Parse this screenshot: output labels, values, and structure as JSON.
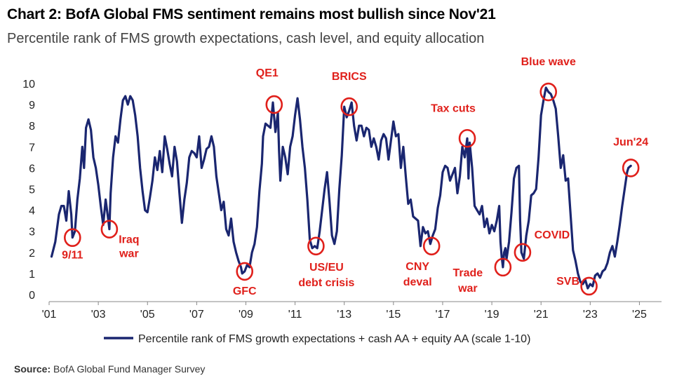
{
  "title": "Chart 2: BofA Global FMS sentiment remains most bullish since Nov'21",
  "subtitle": "Percentile rank of FMS growth expectations, cash level, and equity allocation",
  "source": {
    "label": "Source:",
    "text": "BofA Global Fund Manager Survey"
  },
  "colors": {
    "line": "#1a2670",
    "annotation": "#e0201b",
    "axis": "#888888"
  },
  "chart_data": {
    "type": "line",
    "title": "Chart 2: BofA Global FMS sentiment remains most bullish since Nov'21",
    "subtitle": "Percentile rank of FMS growth expectations, cash level, and equity allocation",
    "xlabel": "",
    "ylabel": "",
    "xlim": [
      2001,
      2025.9
    ],
    "ylim": [
      0,
      10
    ],
    "y_ticks": [
      0,
      1,
      2,
      3,
      4,
      5,
      6,
      7,
      8,
      9,
      10
    ],
    "x_ticks": [
      {
        "value": 2001,
        "label": "'01"
      },
      {
        "value": 2003,
        "label": "'03"
      },
      {
        "value": 2005,
        "label": "'05"
      },
      {
        "value": 2007,
        "label": "'07"
      },
      {
        "value": 2009,
        "label": "'09"
      },
      {
        "value": 2011,
        "label": "'11"
      },
      {
        "value": 2013,
        "label": "'13"
      },
      {
        "value": 2015,
        "label": "'15"
      },
      {
        "value": 2017,
        "label": "'17"
      },
      {
        "value": 2019,
        "label": "'19"
      },
      {
        "value": 2021,
        "label": "'21"
      },
      {
        "value": 2023,
        "label": "'23"
      },
      {
        "value": 2025,
        "label": "'25"
      }
    ],
    "grid": false,
    "legend": "bottom-center",
    "series": [
      {
        "name": "Percentile rank of FMS growth expectations + cash AA + equity AA (scale 1-10)",
        "points": [
          [
            2001.1,
            1.8
          ],
          [
            2001.25,
            2.5
          ],
          [
            2001.4,
            3.8
          ],
          [
            2001.5,
            4.2
          ],
          [
            2001.6,
            4.2
          ],
          [
            2001.7,
            3.5
          ],
          [
            2001.8,
            4.9
          ],
          [
            2001.9,
            3.8
          ],
          [
            2001.95,
            2.7
          ],
          [
            2002.05,
            3.0
          ],
          [
            2002.15,
            4.5
          ],
          [
            2002.25,
            5.5
          ],
          [
            2002.35,
            7.0
          ],
          [
            2002.42,
            6.0
          ],
          [
            2002.5,
            7.9
          ],
          [
            2002.6,
            8.3
          ],
          [
            2002.7,
            7.8
          ],
          [
            2002.8,
            6.5
          ],
          [
            2002.9,
            6.0
          ],
          [
            2003.0,
            5.2
          ],
          [
            2003.1,
            4.2
          ],
          [
            2003.2,
            3.3
          ],
          [
            2003.3,
            4.5
          ],
          [
            2003.4,
            3.6
          ],
          [
            2003.45,
            3.1
          ],
          [
            2003.5,
            4.8
          ],
          [
            2003.6,
            6.5
          ],
          [
            2003.7,
            7.5
          ],
          [
            2003.8,
            7.2
          ],
          [
            2003.9,
            8.3
          ],
          [
            2004.0,
            9.2
          ],
          [
            2004.1,
            9.4
          ],
          [
            2004.2,
            9.0
          ],
          [
            2004.3,
            9.4
          ],
          [
            2004.4,
            9.2
          ],
          [
            2004.5,
            8.5
          ],
          [
            2004.6,
            7.5
          ],
          [
            2004.7,
            6.0
          ],
          [
            2004.8,
            4.9
          ],
          [
            2004.9,
            4.0
          ],
          [
            2005.0,
            3.9
          ],
          [
            2005.1,
            4.6
          ],
          [
            2005.2,
            5.4
          ],
          [
            2005.3,
            6.5
          ],
          [
            2005.4,
            5.9
          ],
          [
            2005.5,
            6.8
          ],
          [
            2005.6,
            5.8
          ],
          [
            2005.7,
            7.5
          ],
          [
            2005.8,
            6.9
          ],
          [
            2005.9,
            6.2
          ],
          [
            2006.0,
            5.6
          ],
          [
            2006.1,
            7.0
          ],
          [
            2006.2,
            6.3
          ],
          [
            2006.3,
            4.8
          ],
          [
            2006.4,
            3.4
          ],
          [
            2006.5,
            4.5
          ],
          [
            2006.6,
            5.3
          ],
          [
            2006.7,
            6.5
          ],
          [
            2006.8,
            6.8
          ],
          [
            2006.9,
            6.7
          ],
          [
            2007.0,
            6.5
          ],
          [
            2007.1,
            7.5
          ],
          [
            2007.2,
            6.0
          ],
          [
            2007.3,
            6.4
          ],
          [
            2007.4,
            6.9
          ],
          [
            2007.5,
            7.0
          ],
          [
            2007.6,
            7.5
          ],
          [
            2007.7,
            7.0
          ],
          [
            2007.8,
            5.6
          ],
          [
            2007.9,
            4.8
          ],
          [
            2008.0,
            4.0
          ],
          [
            2008.1,
            4.4
          ],
          [
            2008.2,
            3.1
          ],
          [
            2008.3,
            2.8
          ],
          [
            2008.4,
            3.6
          ],
          [
            2008.5,
            2.5
          ],
          [
            2008.6,
            2.0
          ],
          [
            2008.7,
            1.6
          ],
          [
            2008.8,
            1.3
          ],
          [
            2008.85,
            1.0
          ],
          [
            2008.95,
            1.1
          ],
          [
            2009.05,
            1.4
          ],
          [
            2009.15,
            1.3
          ],
          [
            2009.25,
            2.0
          ],
          [
            2009.35,
            2.4
          ],
          [
            2009.45,
            3.2
          ],
          [
            2009.55,
            4.9
          ],
          [
            2009.65,
            6.2
          ],
          [
            2009.7,
            7.5
          ],
          [
            2009.8,
            8.1
          ],
          [
            2009.9,
            8.0
          ],
          [
            2010.0,
            7.9
          ],
          [
            2010.1,
            9.1
          ],
          [
            2010.2,
            7.7
          ],
          [
            2010.3,
            8.6
          ],
          [
            2010.35,
            6.8
          ],
          [
            2010.4,
            5.4
          ],
          [
            2010.5,
            7.0
          ],
          [
            2010.6,
            6.5
          ],
          [
            2010.7,
            5.7
          ],
          [
            2010.8,
            7.0
          ],
          [
            2010.9,
            7.5
          ],
          [
            2011.0,
            8.5
          ],
          [
            2011.1,
            9.3
          ],
          [
            2011.2,
            8.3
          ],
          [
            2011.3,
            7.0
          ],
          [
            2011.4,
            6.0
          ],
          [
            2011.5,
            4.5
          ],
          [
            2011.6,
            2.6
          ],
          [
            2011.7,
            2.2
          ],
          [
            2011.8,
            2.3
          ],
          [
            2011.9,
            2.2
          ],
          [
            2012.0,
            3.0
          ],
          [
            2012.1,
            4.0
          ],
          [
            2012.2,
            5.0
          ],
          [
            2012.3,
            5.8
          ],
          [
            2012.4,
            4.4
          ],
          [
            2012.5,
            2.8
          ],
          [
            2012.6,
            2.4
          ],
          [
            2012.7,
            3.0
          ],
          [
            2012.8,
            5.0
          ],
          [
            2012.9,
            6.6
          ],
          [
            2013.0,
            8.9
          ],
          [
            2013.1,
            8.4
          ],
          [
            2013.2,
            8.7
          ],
          [
            2013.3,
            9.1
          ],
          [
            2013.4,
            8.0
          ],
          [
            2013.5,
            7.3
          ],
          [
            2013.6,
            8.0
          ],
          [
            2013.7,
            8.0
          ],
          [
            2013.8,
            7.5
          ],
          [
            2013.9,
            7.9
          ],
          [
            2014.0,
            7.8
          ],
          [
            2014.1,
            7.0
          ],
          [
            2014.2,
            7.4
          ],
          [
            2014.3,
            7.0
          ],
          [
            2014.4,
            6.4
          ],
          [
            2014.5,
            7.3
          ],
          [
            2014.6,
            7.6
          ],
          [
            2014.7,
            7.4
          ],
          [
            2014.8,
            6.4
          ],
          [
            2014.9,
            7.3
          ],
          [
            2015.0,
            8.2
          ],
          [
            2015.1,
            7.5
          ],
          [
            2015.2,
            7.6
          ],
          [
            2015.3,
            6.0
          ],
          [
            2015.4,
            7.0
          ],
          [
            2015.5,
            5.6
          ],
          [
            2015.6,
            4.3
          ],
          [
            2015.7,
            4.5
          ],
          [
            2015.8,
            3.7
          ],
          [
            2015.9,
            3.6
          ],
          [
            2016.0,
            3.5
          ],
          [
            2016.1,
            2.3
          ],
          [
            2016.2,
            3.2
          ],
          [
            2016.3,
            2.9
          ],
          [
            2016.4,
            3.0
          ],
          [
            2016.5,
            2.4
          ],
          [
            2016.6,
            2.8
          ],
          [
            2016.7,
            3.1
          ],
          [
            2016.8,
            4.1
          ],
          [
            2016.9,
            4.7
          ],
          [
            2017.0,
            5.8
          ],
          [
            2017.1,
            6.1
          ],
          [
            2017.2,
            6.0
          ],
          [
            2017.3,
            5.4
          ],
          [
            2017.4,
            5.7
          ],
          [
            2017.5,
            6.0
          ],
          [
            2017.6,
            4.8
          ],
          [
            2017.7,
            5.6
          ],
          [
            2017.8,
            7.0
          ],
          [
            2017.9,
            6.5
          ],
          [
            2018.0,
            7.4
          ],
          [
            2018.05,
            5.5
          ],
          [
            2018.1,
            7.2
          ],
          [
            2018.2,
            6.0
          ],
          [
            2018.3,
            4.2
          ],
          [
            2018.4,
            4.0
          ],
          [
            2018.5,
            3.8
          ],
          [
            2018.6,
            4.2
          ],
          [
            2018.7,
            3.2
          ],
          [
            2018.8,
            3.6
          ],
          [
            2018.9,
            2.9
          ],
          [
            2019.0,
            3.3
          ],
          [
            2019.1,
            3.0
          ],
          [
            2019.2,
            3.5
          ],
          [
            2019.3,
            4.2
          ],
          [
            2019.35,
            2.5
          ],
          [
            2019.4,
            1.8
          ],
          [
            2019.45,
            1.3
          ],
          [
            2019.5,
            2.0
          ],
          [
            2019.55,
            2.2
          ],
          [
            2019.6,
            1.7
          ],
          [
            2019.7,
            2.5
          ],
          [
            2019.8,
            3.9
          ],
          [
            2019.9,
            5.5
          ],
          [
            2020.0,
            6.0
          ],
          [
            2020.1,
            6.1
          ],
          [
            2020.15,
            3.5
          ],
          [
            2020.2,
            2.0
          ],
          [
            2020.3,
            1.7
          ],
          [
            2020.4,
            2.8
          ],
          [
            2020.5,
            3.5
          ],
          [
            2020.6,
            4.7
          ],
          [
            2020.7,
            4.8
          ],
          [
            2020.8,
            5.0
          ],
          [
            2020.9,
            6.5
          ],
          [
            2021.0,
            8.5
          ],
          [
            2021.1,
            9.2
          ],
          [
            2021.2,
            9.8
          ],
          [
            2021.3,
            9.6
          ],
          [
            2021.4,
            9.5
          ],
          [
            2021.5,
            9.2
          ],
          [
            2021.6,
            8.8
          ],
          [
            2021.7,
            7.5
          ],
          [
            2021.8,
            6.0
          ],
          [
            2021.9,
            6.6
          ],
          [
            2022.0,
            5.4
          ],
          [
            2022.1,
            5.5
          ],
          [
            2022.2,
            3.8
          ],
          [
            2022.3,
            2.1
          ],
          [
            2022.4,
            1.6
          ],
          [
            2022.5,
            1.0
          ],
          [
            2022.6,
            0.6
          ],
          [
            2022.7,
            0.5
          ],
          [
            2022.8,
            0.7
          ],
          [
            2022.9,
            0.3
          ],
          [
            2023.0,
            0.5
          ],
          [
            2023.1,
            0.4
          ],
          [
            2023.2,
            0.9
          ],
          [
            2023.3,
            1.0
          ],
          [
            2023.4,
            0.8
          ],
          [
            2023.5,
            1.1
          ],
          [
            2023.6,
            1.2
          ],
          [
            2023.7,
            1.5
          ],
          [
            2023.8,
            2.0
          ],
          [
            2023.9,
            2.3
          ],
          [
            2024.0,
            1.8
          ],
          [
            2024.1,
            2.5
          ],
          [
            2024.2,
            3.3
          ],
          [
            2024.3,
            4.2
          ],
          [
            2024.4,
            5.0
          ],
          [
            2024.5,
            5.8
          ],
          [
            2024.55,
            6.0
          ],
          [
            2024.65,
            6.1
          ]
        ]
      }
    ],
    "annotations": [
      {
        "text": "9/11",
        "x": 2001.95,
        "y": 2.7
      },
      {
        "text": "Iraq",
        "x": 2003.45,
        "y": 3.1
      },
      {
        "text": "war",
        "x": 2003.45,
        "y": 3.1
      },
      {
        "text": "GFC",
        "x": 2008.95,
        "y": 1.1
      },
      {
        "text": "QE1",
        "x": 2010.15,
        "y": 9.0
      },
      {
        "text": "US/EU",
        "x": 2011.85,
        "y": 2.3
      },
      {
        "text": "debt crisis",
        "x": 2011.85,
        "y": 2.3
      },
      {
        "text": "BRICS",
        "x": 2013.2,
        "y": 8.9
      },
      {
        "text": "CNY",
        "x": 2016.55,
        "y": 2.3
      },
      {
        "text": "deval",
        "x": 2016.55,
        "y": 2.3
      },
      {
        "text": "Tax cuts",
        "x": 2018.0,
        "y": 7.4
      },
      {
        "text": "Trade",
        "x": 2019.45,
        "y": 1.3
      },
      {
        "text": "war",
        "x": 2019.45,
        "y": 1.3
      },
      {
        "text": "COVID",
        "x": 2020.25,
        "y": 2.0
      },
      {
        "text": "Blue wave",
        "x": 2021.3,
        "y": 9.6
      },
      {
        "text": "SVB",
        "x": 2022.95,
        "y": 0.4
      },
      {
        "text": "Jun'24",
        "x": 2024.65,
        "y": 6.0
      }
    ]
  }
}
